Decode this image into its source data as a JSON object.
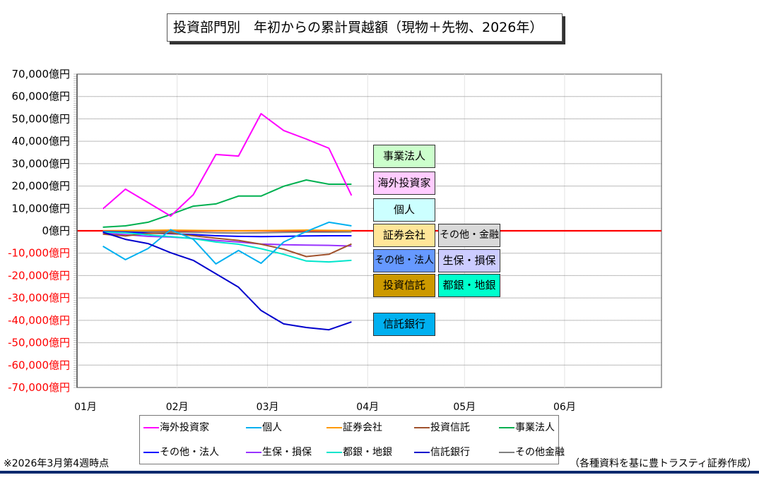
{
  "title": "投資部門別　年初からの累計買越額（現物＋先物、2026年）",
  "footnote_left": "※2026年3月第4週時点",
  "footnote_right": "（各種資料を基に豊トラスティ証券作成）",
  "colors": {
    "zero_line": "#ff0000",
    "negative_tick_label": "#ff0000",
    "positive_tick_label": "#000000",
    "bottom_rule": "#0b2a6e"
  },
  "tags": [
    {
      "label": "事業法人",
      "bg": "#ccffcc"
    },
    {
      "label": "海外投資家",
      "bg": "#ffccff"
    },
    {
      "label": "個人",
      "bg": "#ccffff"
    },
    {
      "label": "証券会社",
      "bg": "#ffe699"
    },
    {
      "label": "その他・金融",
      "bg": "#d9d9d9"
    },
    {
      "label": "その他・法人",
      "bg": "#6699ff"
    },
    {
      "label": "生保・損保",
      "bg": "#ccccff"
    },
    {
      "label": "投資信託",
      "bg": "#cc9900"
    },
    {
      "label": "都銀・地銀",
      "bg": "#00ffcc"
    },
    {
      "label": "信託銀行",
      "bg": "#00b0f0"
    }
  ],
  "chart_data": {
    "type": "line",
    "title": "投資部門別　年初からの累計買越額（現物＋先物、2026年）",
    "xlabel": "",
    "ylabel": "",
    "ylim": [
      -70000,
      70000
    ],
    "yticks": [
      70000,
      60000,
      50000,
      40000,
      30000,
      20000,
      10000,
      0,
      -10000,
      -20000,
      -30000,
      -40000,
      -50000,
      -60000,
      -70000
    ],
    "ytick_labels": [
      "70,000億円",
      "60,000億円",
      "50,000億円",
      "40,000億円",
      "30,000億円",
      "20,000億円",
      "10,000億円",
      "0億円",
      "-10,000億円",
      "-20,000億円",
      "-30,000億円",
      "-40,000億円",
      "-50,000億円",
      "-60,000億円",
      "-70,000億円"
    ],
    "xlim_days": [
      0,
      181
    ],
    "xticks_days": [
      0,
      31,
      59,
      90,
      120,
      151
    ],
    "xtick_labels": [
      "01月",
      "02月",
      "03月",
      "04月",
      "05月",
      "06月"
    ],
    "x_days": [
      8,
      15,
      22,
      29,
      36,
      43,
      50,
      57,
      64,
      71,
      78,
      85
    ],
    "grid": "horizontal-dotted",
    "legend_position": "bottom",
    "series": [
      {
        "name": "海外投資家",
        "color": "#ff00ff",
        "values": [
          9800,
          18600,
          12600,
          6600,
          16100,
          34100,
          33400,
          52300,
          44800,
          41000,
          36900,
          15800
        ]
      },
      {
        "name": "個人",
        "color": "#00b0f0",
        "values": [
          -6900,
          -12900,
          -7900,
          500,
          -3800,
          -14800,
          -8800,
          -14500,
          -5000,
          -300,
          3800,
          2200
        ]
      },
      {
        "name": "証券会社",
        "color": "#ff9900",
        "values": [
          0,
          100,
          200,
          300,
          200,
          100,
          0,
          100,
          200,
          300,
          200,
          100
        ]
      },
      {
        "name": "投資信託",
        "color": "#a0522d",
        "values": [
          -1500,
          -2300,
          -1200,
          -1000,
          -2200,
          -3300,
          -4300,
          -6000,
          -8200,
          -11500,
          -10500,
          -5900
        ]
      },
      {
        "name": "事業法人",
        "color": "#00b050",
        "values": [
          1600,
          2200,
          3800,
          7300,
          11000,
          12000,
          15500,
          15500,
          19900,
          22700,
          20800,
          20800
        ]
      },
      {
        "name": "その他・法人",
        "color": "#0000ff",
        "values": [
          -300,
          -600,
          -1000,
          -1300,
          -1700,
          -2200,
          -2500,
          -2600,
          -2500,
          -2300,
          -2200,
          -2200
        ]
      },
      {
        "name": "生保・損保",
        "color": "#9933ff",
        "values": [
          -1000,
          -1700,
          -2500,
          -2800,
          -3400,
          -4300,
          -5000,
          -5900,
          -6200,
          -6400,
          -6500,
          -6800
        ]
      },
      {
        "name": "都銀・地銀",
        "color": "#00e5cc",
        "values": [
          -500,
          -900,
          -1800,
          -2600,
          -3500,
          -5000,
          -6000,
          -8000,
          -10500,
          -13500,
          -13900,
          -13200
        ]
      },
      {
        "name": "信託銀行",
        "color": "#0000cc",
        "values": [
          -600,
          -3800,
          -5700,
          -9800,
          -13200,
          -19200,
          -25200,
          -35600,
          -41600,
          -43200,
          -44200,
          -40700
        ]
      },
      {
        "name": "その他金融",
        "color": "#808080",
        "values": [
          -200,
          -300,
          -400,
          -500,
          -700,
          -900,
          -1000,
          -900,
          -700,
          -600,
          -600,
          -500
        ]
      }
    ]
  }
}
